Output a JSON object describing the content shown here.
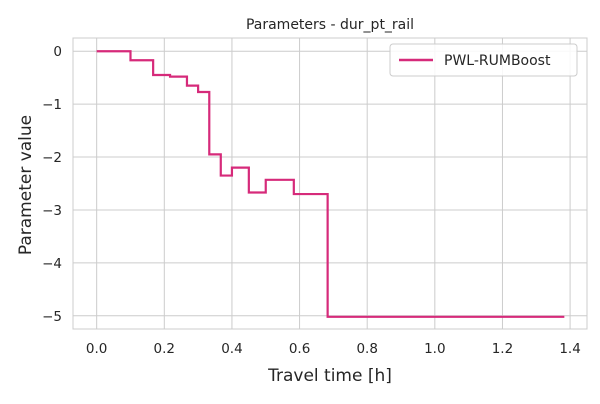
{
  "chart_data": {
    "type": "line",
    "drawstyle": "steps-post",
    "title": "Parameters - dur_pt_rail",
    "xlabel": "Travel time [h]",
    "ylabel": "Parameter value",
    "xlim": [
      -0.07,
      1.45
    ],
    "ylim": [
      -5.25,
      0.25
    ],
    "xticks": [
      0.0,
      0.2,
      0.4,
      0.6,
      0.8,
      1.0,
      1.2,
      1.4
    ],
    "xtick_labels": [
      "0.0",
      "0.2",
      "0.4",
      "0.6",
      "0.8",
      "1.0",
      "1.2",
      "1.4"
    ],
    "yticks": [
      0,
      -1,
      -2,
      -3,
      -4,
      -5
    ],
    "ytick_labels": [
      "0",
      "−1",
      "−2",
      "−3",
      "−4",
      "−5"
    ],
    "grid": true,
    "legend_position": "top-right",
    "series": [
      {
        "name": "PWL-RUMBoost",
        "color": "#d62a7a",
        "x": [
          0.0,
          0.1,
          0.167,
          0.217,
          0.267,
          0.3,
          0.333,
          0.367,
          0.4,
          0.45,
          0.5,
          0.583,
          0.683,
          1.383
        ],
        "y": [
          0.0,
          -0.17,
          -0.45,
          -0.48,
          -0.65,
          -0.77,
          -1.95,
          -2.35,
          -2.2,
          -2.67,
          -2.43,
          -2.7,
          -5.02,
          -5.02
        ]
      }
    ]
  }
}
